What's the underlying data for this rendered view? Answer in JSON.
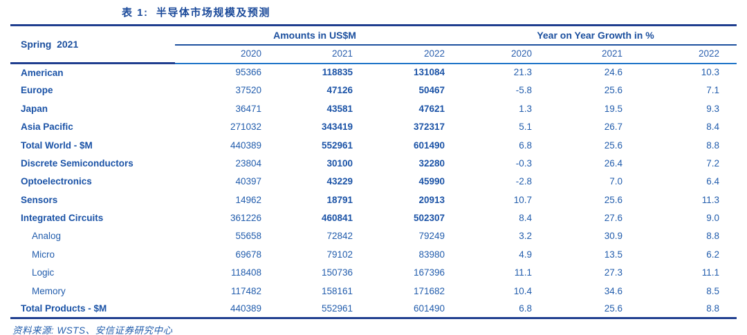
{
  "title": "表 1:  半导体市场规模及预测",
  "source": "资料来源: WSTS、安信证券研究中心",
  "colors": {
    "dark_border": "#1F3E8F",
    "group_underline": "#1C4F9E",
    "light_underline": "#1E74C8",
    "text_blue": "#215CAC",
    "bold_text_blue": "#1A52A6",
    "title_blue": "#1B4A9A"
  },
  "chart_data": {
    "type": "table",
    "title": "表 1:  半导体市场规模及预测",
    "corner_label": "Spring  2021",
    "column_groups": [
      {
        "label": "Amounts in US$M",
        "years": [
          "2020",
          "2021",
          "2022"
        ]
      },
      {
        "label": "Year on Year Growth in %",
        "years": [
          "2020",
          "2021",
          "2022"
        ]
      }
    ],
    "rows": [
      {
        "label": "American",
        "indent": false,
        "bold_label": true,
        "bold_values": true,
        "amounts": [
          "95366",
          "118835",
          "131084"
        ],
        "growth": [
          "21.3",
          "24.6",
          "10.3"
        ]
      },
      {
        "label": "Europe",
        "indent": false,
        "bold_label": true,
        "bold_values": true,
        "amounts": [
          "37520",
          "47126",
          "50467"
        ],
        "growth": [
          "-5.8",
          "25.6",
          "7.1"
        ]
      },
      {
        "label": "Japan",
        "indent": false,
        "bold_label": true,
        "bold_values": true,
        "amounts": [
          "36471",
          "43581",
          "47621"
        ],
        "growth": [
          "1.3",
          "19.5",
          "9.3"
        ]
      },
      {
        "label": "Asia Pacific",
        "indent": false,
        "bold_label": true,
        "bold_values": true,
        "amounts": [
          "271032",
          "343419",
          "372317"
        ],
        "growth": [
          "5.1",
          "26.7",
          "8.4"
        ]
      },
      {
        "label": "Total World - $M",
        "indent": false,
        "bold_label": true,
        "bold_values": true,
        "amounts": [
          "440389",
          "552961",
          "601490"
        ],
        "growth": [
          "6.8",
          "25.6",
          "8.8"
        ]
      },
      {
        "label": "Discrete Semiconductors",
        "indent": false,
        "bold_label": true,
        "bold_values": true,
        "amounts": [
          "23804",
          "30100",
          "32280"
        ],
        "growth": [
          "-0.3",
          "26.4",
          "7.2"
        ]
      },
      {
        "label": "Optoelectronics",
        "indent": false,
        "bold_label": true,
        "bold_values": true,
        "amounts": [
          "40397",
          "43229",
          "45990"
        ],
        "growth": [
          "-2.8",
          "7.0",
          "6.4"
        ]
      },
      {
        "label": "Sensors",
        "indent": false,
        "bold_label": true,
        "bold_values": true,
        "amounts": [
          "14962",
          "18791",
          "20913"
        ],
        "growth": [
          "10.7",
          "25.6",
          "11.3"
        ]
      },
      {
        "label": "Integrated Circuits",
        "indent": false,
        "bold_label": true,
        "bold_values": true,
        "amounts": [
          "361226",
          "460841",
          "502307"
        ],
        "growth": [
          "8.4",
          "27.6",
          "9.0"
        ]
      },
      {
        "label": "Analog",
        "indent": true,
        "bold_label": false,
        "bold_values": false,
        "amounts": [
          "55658",
          "72842",
          "79249"
        ],
        "growth": [
          "3.2",
          "30.9",
          "8.8"
        ]
      },
      {
        "label": "Micro",
        "indent": true,
        "bold_label": false,
        "bold_values": false,
        "amounts": [
          "69678",
          "79102",
          "83980"
        ],
        "growth": [
          "4.9",
          "13.5",
          "6.2"
        ]
      },
      {
        "label": "Logic",
        "indent": true,
        "bold_label": false,
        "bold_values": false,
        "amounts": [
          "118408",
          "150736",
          "167396"
        ],
        "growth": [
          "11.1",
          "27.3",
          "11.1"
        ]
      },
      {
        "label": "Memory",
        "indent": true,
        "bold_label": false,
        "bold_values": false,
        "amounts": [
          "117482",
          "158161",
          "171682"
        ],
        "growth": [
          "10.4",
          "34.6",
          "8.5"
        ]
      },
      {
        "label": "Total Products - $M",
        "indent": false,
        "bold_label": true,
        "bold_values": false,
        "amounts": [
          "440389",
          "552961",
          "601490"
        ],
        "growth": [
          "6.8",
          "25.6",
          "8.8"
        ]
      }
    ],
    "source": "资料来源: WSTS、安信证券研究中心"
  }
}
